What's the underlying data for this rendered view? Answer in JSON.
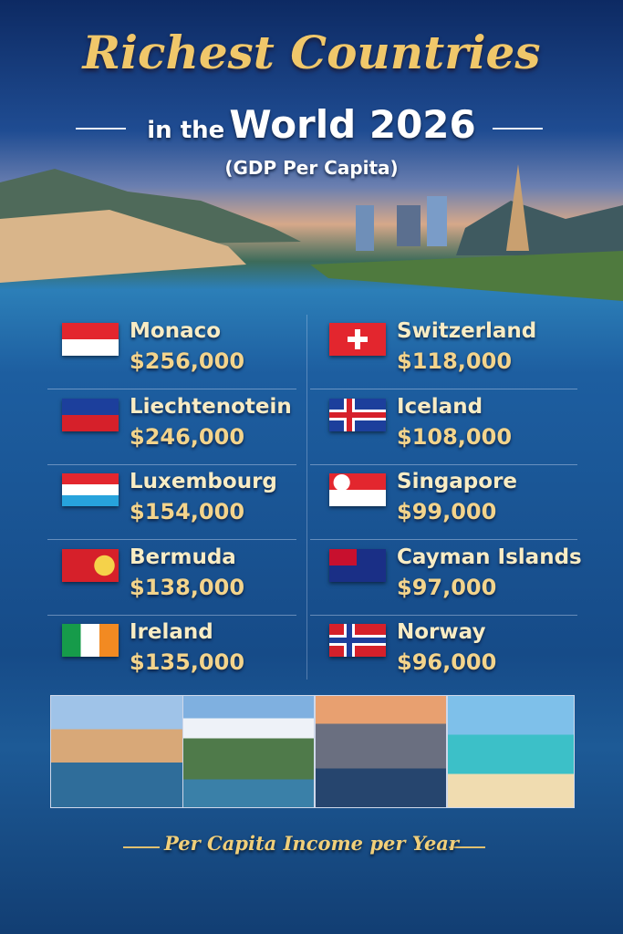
{
  "header": {
    "title": "Richest Countries",
    "subtitle_prefix": "in the",
    "subtitle": "World 2026",
    "caption": "(GDP Per Capita)"
  },
  "countries": [
    {
      "name": "Monaco",
      "value": "$256,000"
    },
    {
      "name": "Liechtenotein",
      "value": "$246,000"
    },
    {
      "name": "Luxembourg",
      "value": "$154,000"
    },
    {
      "name": "Bermuda",
      "value": "$138,000"
    },
    {
      "name": "Ireland",
      "value": "$135,000"
    },
    {
      "name": "Switzerland",
      "value": "$118,000"
    },
    {
      "name": "Iceland",
      "value": "$108,000"
    },
    {
      "name": "Singapore",
      "value": "$99,000"
    },
    {
      "name": "Cayman Islands",
      "value": "$97,000"
    },
    {
      "name": "Norway",
      "value": "$96,000"
    }
  ],
  "footer": {
    "text": "Per Capita Income per Year"
  }
}
